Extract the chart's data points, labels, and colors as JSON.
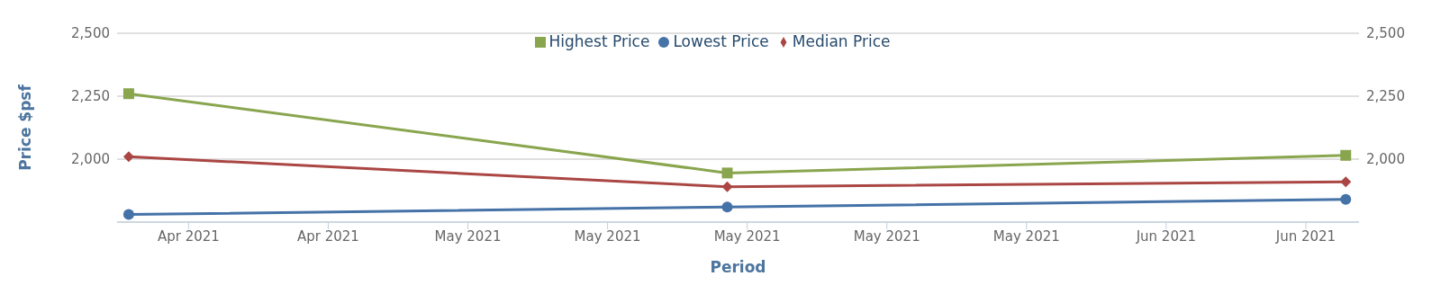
{
  "chart_data": {
    "type": "line",
    "xlabel": "Period",
    "ylabel": "Price $psf",
    "x": [
      "2021-04-16",
      "2021-05-16",
      "2021-06-16"
    ],
    "series": [
      {
        "name": "Lowest Price",
        "color": "#4572a7",
        "marker": "circle",
        "values": [
          1780,
          1810,
          1840
        ]
      },
      {
        "name": "Median Price",
        "color": "#aa4643",
        "marker": "diamond",
        "values": [
          2010,
          1890,
          1910
        ]
      },
      {
        "name": "Highest Price",
        "color": "#89a54e",
        "marker": "square",
        "values": [
          2260,
          1945,
          2015
        ]
      }
    ],
    "xlim": [
      "2021-04-15T10:00",
      "2021-06-16T16:00"
    ],
    "xticks": [
      {
        "value": "2021-04-19",
        "label": "Apr 2021"
      },
      {
        "value": "2021-04-26",
        "label": "Apr 2021"
      },
      {
        "value": "2021-05-03",
        "label": "May 2021"
      },
      {
        "value": "2021-05-10",
        "label": "May 2021"
      },
      {
        "value": "2021-05-17",
        "label": "May 2021"
      },
      {
        "value": "2021-05-24",
        "label": "May 2021"
      },
      {
        "value": "2021-05-31",
        "label": "May 2021"
      },
      {
        "value": "2021-06-07",
        "label": "Jun 2021"
      },
      {
        "value": "2021-06-14",
        "label": "Jun 2021"
      }
    ],
    "ylim": [
      1750,
      2500
    ],
    "yticks": [
      {
        "value": 1750,
        "label": null
      },
      {
        "value": 2000,
        "label": "2,000"
      },
      {
        "value": 2250,
        "label": "2,250"
      },
      {
        "value": 2500,
        "label": "2,500"
      }
    ],
    "y2lim": [
      1750,
      2500
    ],
    "y2ticks": [
      {
        "value": 1750,
        "label": null
      },
      {
        "value": 2000,
        "label": "2,000"
      },
      {
        "value": 2250,
        "label": "2,250"
      },
      {
        "value": 2500,
        "label": "2,500"
      }
    ],
    "grid": "y",
    "legend": "top"
  }
}
